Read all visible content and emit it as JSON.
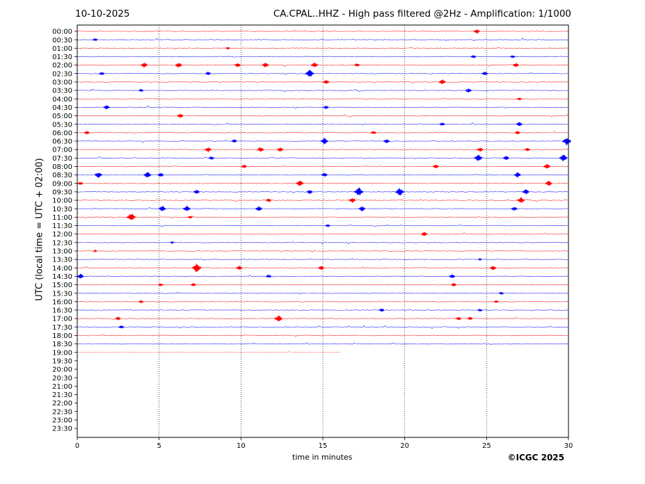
{
  "header": {
    "date": "10-10-2025",
    "title": "CA.CPAL..HHZ - High pass filtered @2Hz - Amplification: 1/1000"
  },
  "footer": {
    "copyright": "©ICGC 2025"
  },
  "colors": {
    "even_row": "#ff0000",
    "odd_row": "#0000ff",
    "grid": "#000000"
  },
  "chart_data": {
    "type": "line",
    "title": "CA.CPAL..HHZ - High pass filtered @2Hz - Amplification: 1/1000",
    "xlabel": "time in minutes",
    "ylabel": "UTC (local time = UTC + 02:00)",
    "xlim": [
      0,
      30
    ],
    "x_ticks": [
      0,
      5,
      10,
      15,
      20,
      25,
      30
    ],
    "vertical_grid_at": [
      5,
      10,
      15,
      20,
      25
    ],
    "y_ticks": [
      "00:00",
      "00:30",
      "01:00",
      "01:30",
      "02:00",
      "02:30",
      "03:00",
      "03:30",
      "04:00",
      "04:30",
      "05:00",
      "05:30",
      "06:00",
      "06:30",
      "07:00",
      "07:30",
      "08:00",
      "08:30",
      "09:00",
      "09:30",
      "10:00",
      "10:30",
      "11:00",
      "11:30",
      "12:00",
      "12:30",
      "13:00",
      "13:30",
      "14:00",
      "14:30",
      "15:00",
      "15:30",
      "16:00",
      "16:30",
      "17:00",
      "17:30",
      "18:00",
      "18:30",
      "19:00",
      "19:30",
      "20:00",
      "20:30",
      "21:00",
      "21:30",
      "22:00",
      "22:30",
      "23:00",
      "23:30"
    ],
    "last_trace": {
      "row": "19:00",
      "end_minute": 16.1
    },
    "events": [
      {
        "row": "00:00",
        "minute": 24.4,
        "amp": 0.5
      },
      {
        "row": "00:30",
        "minute": 1.1,
        "amp": 0.3
      },
      {
        "row": "01:00",
        "minute": 9.2,
        "amp": 0.25
      },
      {
        "row": "01:30",
        "minute": 24.2,
        "amp": 0.4
      },
      {
        "row": "01:30",
        "minute": 26.6,
        "amp": 0.3
      },
      {
        "row": "02:00",
        "minute": 4.1,
        "amp": 0.6
      },
      {
        "row": "02:00",
        "minute": 6.2,
        "amp": 0.6
      },
      {
        "row": "02:00",
        "minute": 9.8,
        "amp": 0.5
      },
      {
        "row": "02:00",
        "minute": 11.5,
        "amp": 0.6
      },
      {
        "row": "02:00",
        "minute": 14.5,
        "amp": 0.6
      },
      {
        "row": "02:00",
        "minute": 17.1,
        "amp": 0.4
      },
      {
        "row": "02:00",
        "minute": 26.8,
        "amp": 0.5
      },
      {
        "row": "02:30",
        "minute": 1.5,
        "amp": 0.4
      },
      {
        "row": "02:30",
        "minute": 8.0,
        "amp": 0.4
      },
      {
        "row": "02:30",
        "minute": 14.2,
        "amp": 0.9
      },
      {
        "row": "02:30",
        "minute": 24.9,
        "amp": 0.5
      },
      {
        "row": "03:00",
        "minute": 15.2,
        "amp": 0.5
      },
      {
        "row": "03:00",
        "minute": 22.3,
        "amp": 0.6
      },
      {
        "row": "03:30",
        "minute": 3.9,
        "amp": 0.3
      },
      {
        "row": "03:30",
        "minute": 23.9,
        "amp": 0.5
      },
      {
        "row": "04:00",
        "minute": 27.0,
        "amp": 0.3
      },
      {
        "row": "04:30",
        "minute": 1.8,
        "amp": 0.5
      },
      {
        "row": "04:30",
        "minute": 15.2,
        "amp": 0.4
      },
      {
        "row": "05:00",
        "minute": 6.3,
        "amp": 0.5
      },
      {
        "row": "05:30",
        "minute": 22.3,
        "amp": 0.4
      },
      {
        "row": "05:30",
        "minute": 27.0,
        "amp": 0.5
      },
      {
        "row": "06:00",
        "minute": 0.6,
        "amp": 0.4
      },
      {
        "row": "06:00",
        "minute": 18.1,
        "amp": 0.4
      },
      {
        "row": "06:00",
        "minute": 26.9,
        "amp": 0.4
      },
      {
        "row": "06:30",
        "minute": 9.6,
        "amp": 0.4
      },
      {
        "row": "06:30",
        "minute": 15.1,
        "amp": 0.7
      },
      {
        "row": "06:30",
        "minute": 18.9,
        "amp": 0.5
      },
      {
        "row": "06:30",
        "minute": 29.9,
        "amp": 0.9
      },
      {
        "row": "07:00",
        "minute": 8.0,
        "amp": 0.6
      },
      {
        "row": "07:00",
        "minute": 11.2,
        "amp": 0.6
      },
      {
        "row": "07:00",
        "minute": 12.4,
        "amp": 0.5
      },
      {
        "row": "07:00",
        "minute": 24.6,
        "amp": 0.5
      },
      {
        "row": "07:00",
        "minute": 27.5,
        "amp": 0.4
      },
      {
        "row": "07:30",
        "minute": 8.2,
        "amp": 0.4
      },
      {
        "row": "07:30",
        "minute": 24.5,
        "amp": 0.8
      },
      {
        "row": "07:30",
        "minute": 26.2,
        "amp": 0.5
      },
      {
        "row": "07:30",
        "minute": 29.7,
        "amp": 0.8
      },
      {
        "row": "08:00",
        "minute": 10.2,
        "amp": 0.4
      },
      {
        "row": "08:00",
        "minute": 21.9,
        "amp": 0.5
      },
      {
        "row": "08:00",
        "minute": 28.7,
        "amp": 0.6
      },
      {
        "row": "08:30",
        "minute": 1.3,
        "amp": 0.7
      },
      {
        "row": "08:30",
        "minute": 4.3,
        "amp": 0.7
      },
      {
        "row": "08:30",
        "minute": 5.1,
        "amp": 0.5
      },
      {
        "row": "08:30",
        "minute": 15.1,
        "amp": 0.5
      },
      {
        "row": "08:30",
        "minute": 26.9,
        "amp": 0.6
      },
      {
        "row": "09:00",
        "minute": 0.2,
        "amp": 0.4
      },
      {
        "row": "09:00",
        "minute": 13.6,
        "amp": 0.7
      },
      {
        "row": "09:00",
        "minute": 28.8,
        "amp": 0.6
      },
      {
        "row": "09:30",
        "minute": 7.3,
        "amp": 0.5
      },
      {
        "row": "09:30",
        "minute": 14.2,
        "amp": 0.5
      },
      {
        "row": "09:30",
        "minute": 17.2,
        "amp": 1.0
      },
      {
        "row": "09:30",
        "minute": 19.7,
        "amp": 0.9
      },
      {
        "row": "09:30",
        "minute": 27.4,
        "amp": 0.6
      },
      {
        "row": "10:00",
        "minute": 11.7,
        "amp": 0.4
      },
      {
        "row": "10:00",
        "minute": 16.8,
        "amp": 0.6
      },
      {
        "row": "10:00",
        "minute": 27.1,
        "amp": 0.7
      },
      {
        "row": "10:30",
        "minute": 5.2,
        "amp": 0.7
      },
      {
        "row": "10:30",
        "minute": 6.7,
        "amp": 0.7
      },
      {
        "row": "10:30",
        "minute": 11.1,
        "amp": 0.6
      },
      {
        "row": "10:30",
        "minute": 17.4,
        "amp": 0.6
      },
      {
        "row": "10:30",
        "minute": 26.7,
        "amp": 0.5
      },
      {
        "row": "11:00",
        "minute": 3.3,
        "amp": 0.9
      },
      {
        "row": "11:00",
        "minute": 6.9,
        "amp": 0.3
      },
      {
        "row": "11:30",
        "minute": 15.3,
        "amp": 0.3
      },
      {
        "row": "12:00",
        "minute": 21.2,
        "amp": 0.5
      },
      {
        "row": "12:30",
        "minute": 5.8,
        "amp": 0.2
      },
      {
        "row": "13:00",
        "minute": 1.1,
        "amp": 0.2
      },
      {
        "row": "13:30",
        "minute": 24.6,
        "amp": 0.2
      },
      {
        "row": "14:00",
        "minute": 7.3,
        "amp": 1.0
      },
      {
        "row": "14:00",
        "minute": 9.9,
        "amp": 0.5
      },
      {
        "row": "14:00",
        "minute": 14.9,
        "amp": 0.5
      },
      {
        "row": "14:00",
        "minute": 25.4,
        "amp": 0.5
      },
      {
        "row": "14:30",
        "minute": 0.2,
        "amp": 0.6
      },
      {
        "row": "14:30",
        "minute": 11.7,
        "amp": 0.4
      },
      {
        "row": "14:30",
        "minute": 22.9,
        "amp": 0.5
      },
      {
        "row": "15:00",
        "minute": 5.1,
        "amp": 0.3
      },
      {
        "row": "15:00",
        "minute": 7.1,
        "amp": 0.4
      },
      {
        "row": "15:00",
        "minute": 23.0,
        "amp": 0.4
      },
      {
        "row": "15:30",
        "minute": 25.9,
        "amp": 0.3
      },
      {
        "row": "16:00",
        "minute": 3.9,
        "amp": 0.3
      },
      {
        "row": "16:00",
        "minute": 25.6,
        "amp": 0.3
      },
      {
        "row": "16:30",
        "minute": 18.6,
        "amp": 0.4
      },
      {
        "row": "16:30",
        "minute": 24.6,
        "amp": 0.3
      },
      {
        "row": "17:00",
        "minute": 2.5,
        "amp": 0.4
      },
      {
        "row": "17:00",
        "minute": 12.3,
        "amp": 0.8
      },
      {
        "row": "17:00",
        "minute": 23.3,
        "amp": 0.4
      },
      {
        "row": "17:00",
        "minute": 24.0,
        "amp": 0.4
      },
      {
        "row": "17:30",
        "minute": 2.7,
        "amp": 0.4
      }
    ]
  }
}
